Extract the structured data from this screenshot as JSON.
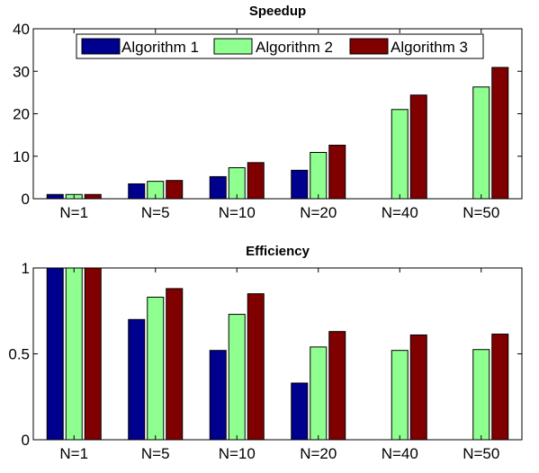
{
  "chart_data": [
    {
      "type": "bar",
      "title": "Speedup",
      "xlabel": "",
      "ylabel": "",
      "categories": [
        "N=1",
        "N=5",
        "N=10",
        "N=20",
        "N=40",
        "N=50"
      ],
      "series": [
        {
          "name": "Algorithm 1",
          "color": "#00008f",
          "values": [
            1,
            3.5,
            5.2,
            6.7,
            null,
            null
          ]
        },
        {
          "name": "Algorithm 2",
          "color": "#8fff8f",
          "values": [
            1,
            4.1,
            7.3,
            10.9,
            21,
            26.3
          ]
        },
        {
          "name": "Algorithm 3",
          "color": "#800000",
          "values": [
            1,
            4.3,
            8.5,
            12.6,
            24.4,
            30.9
          ]
        }
      ],
      "ylim": [
        0,
        40
      ],
      "yticks": [
        "0",
        "10",
        "20",
        "30",
        "40"
      ],
      "yticks_values": [
        0,
        10,
        20,
        30,
        40
      ],
      "grid": false,
      "legend": "top-center, horizontal"
    },
    {
      "type": "bar",
      "title": "Efficiency",
      "xlabel": "",
      "ylabel": "",
      "categories": [
        "N=1",
        "N=5",
        "N=10",
        "N=20",
        "N=40",
        "N=50"
      ],
      "series": [
        {
          "name": "Algorithm 1",
          "color": "#00008f",
          "values": [
            1,
            0.7,
            0.52,
            0.33,
            null,
            null
          ]
        },
        {
          "name": "Algorithm 2",
          "color": "#8fff8f",
          "values": [
            1,
            0.83,
            0.73,
            0.54,
            0.52,
            0.525
          ]
        },
        {
          "name": "Algorithm 3",
          "color": "#800000",
          "values": [
            1,
            0.88,
            0.85,
            0.63,
            0.61,
            0.615
          ]
        }
      ],
      "ylim": [
        0,
        1
      ],
      "yticks": [
        "0",
        "0.5",
        "1"
      ],
      "yticks_values": [
        0,
        0.5,
        1
      ],
      "grid": false,
      "legend": "none"
    }
  ]
}
